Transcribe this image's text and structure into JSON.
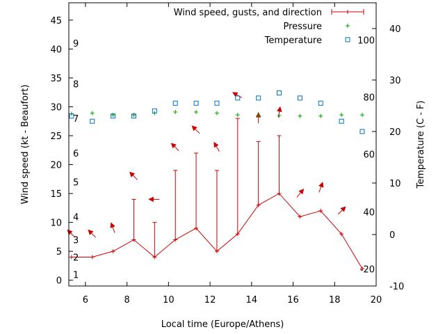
{
  "chart_data": {
    "type": "line",
    "xlabel": "Local time (Europe/Athens)",
    "ylabel": "Wind speed (kt - Beaufort)",
    "y2label": "Temperature (C - F)",
    "xlim": [
      5.2,
      20
    ],
    "ylim": [
      -1,
      48
    ],
    "y2lim": [
      -10,
      45
    ],
    "x_ticks": [
      6,
      8,
      10,
      12,
      14,
      16,
      18,
      20
    ],
    "y_ticks": [
      0,
      5,
      10,
      15,
      20,
      25,
      30,
      35,
      40,
      45
    ],
    "y2_ticks": [
      -10,
      0,
      10,
      20,
      30,
      40
    ],
    "beaufort_labels": [
      {
        "text": "1",
        "y": 1
      },
      {
        "text": "2",
        "y": 4
      },
      {
        "text": "3",
        "y": 7
      },
      {
        "text": "4",
        "y": 11
      },
      {
        "text": "5",
        "y": 17
      },
      {
        "text": "6",
        "y": 22
      },
      {
        "text": "7",
        "y": 28
      },
      {
        "text": "8",
        "y": 34
      },
      {
        "text": "9",
        "y": 41
      }
    ],
    "fahrenheit_labels": [
      {
        "text": "-20",
        "c": -6.7
      },
      {
        "text": "40",
        "c": 4.4
      },
      {
        "text": "60",
        "c": 15.6
      },
      {
        "text": "80",
        "c": 26.7
      },
      {
        "text": "100",
        "c": 37.8
      }
    ],
    "legend": [
      {
        "name": "Wind speed, gusts, and direction",
        "color": "#cc0000",
        "marker": "errorbar"
      },
      {
        "name": "Pressure",
        "color": "#00a000",
        "marker": "plus"
      },
      {
        "name": "Temperature",
        "color": "#0070c0",
        "marker": "square"
      }
    ],
    "legend_placement": "top-right",
    "series": [
      {
        "name": "Wind speed",
        "x": [
          5.33,
          6.33,
          7.33,
          8.33,
          9.33,
          10.33,
          11.33,
          12.33,
          13.33,
          14.33,
          15.33,
          16.33,
          17.33,
          18.33,
          19.33
        ],
        "values": [
          4,
          4,
          5,
          7,
          4,
          7,
          9,
          5,
          8,
          13,
          15,
          11,
          12,
          8,
          2
        ],
        "gusts": [
          4,
          4,
          5,
          14,
          10,
          19,
          22,
          19,
          28,
          24,
          25,
          11,
          12,
          8,
          2
        ],
        "arrow_y": [
          8,
          8,
          9,
          18,
          14,
          23,
          26,
          23,
          32,
          28,
          29,
          15,
          16,
          12,
          0
        ],
        "arrow_angle_deg": [
          315,
          315,
          340,
          315,
          270,
          315,
          315,
          330,
          300,
          360,
          10,
          40,
          20,
          45,
          0
        ]
      },
      {
        "name": "Pressure",
        "x": [
          5.33,
          6.33,
          7.33,
          8.33,
          9.33,
          10.33,
          11.33,
          12.33,
          13.33,
          14.33,
          15.33,
          16.33,
          17.33,
          18.33,
          19.33
        ],
        "values": [
          28.8,
          28.9,
          28.6,
          28.6,
          28.9,
          29.1,
          29.1,
          28.9,
          28.6,
          28.5,
          28.5,
          28.4,
          28.4,
          28.6,
          28.6
        ]
      },
      {
        "name": "Temperature",
        "x": [
          5.33,
          6.33,
          7.33,
          8.33,
          9.33,
          10.33,
          11.33,
          12.33,
          13.33,
          14.33,
          15.33,
          16.33,
          17.33,
          18.33,
          19.33
        ],
        "values": [
          23,
          22,
          23,
          23,
          24,
          25.5,
          25.5,
          25.5,
          26.5,
          26.5,
          27.5,
          26.5,
          25.5,
          22,
          20
        ]
      }
    ]
  }
}
